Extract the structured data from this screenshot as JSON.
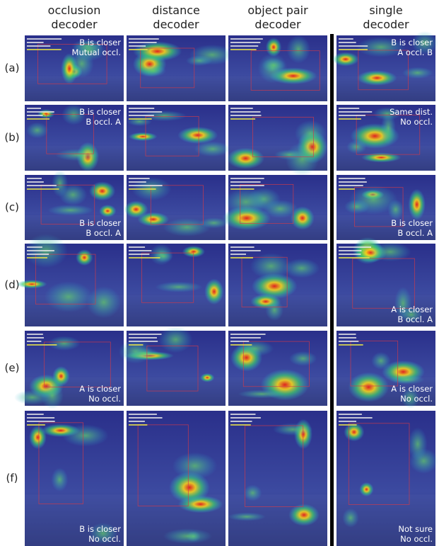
{
  "columns": [
    [
      "occlusion",
      "decoder"
    ],
    [
      "distance",
      "decoder"
    ],
    [
      "object pair",
      "decoder"
    ],
    [
      "single",
      "decoder"
    ]
  ],
  "rows": [
    {
      "label": "(a)",
      "occlusion_decoder": [
        "B is closer",
        "Mutual occl."
      ],
      "single_decoder": [
        "B is closer",
        "A occl. B"
      ]
    },
    {
      "label": "(b)",
      "occlusion_decoder": [
        "B is closer",
        "B occl. A"
      ],
      "single_decoder": [
        "Same dist.",
        "No occl."
      ]
    },
    {
      "label": "(c)",
      "occlusion_decoder": [
        "B is closer",
        "B occl. A"
      ],
      "single_decoder": [
        "B is closer",
        "B occl. A"
      ]
    },
    {
      "label": "(d)",
      "single_decoder": [
        "A is closer",
        "B occl. A"
      ]
    },
    {
      "label": "(e)",
      "occlusion_decoder": [
        "A is closer",
        "No occl."
      ],
      "single_decoder": [
        "A is closer",
        "No occl."
      ]
    },
    {
      "label": "(f)",
      "occlusion_decoder": [
        "B is closer",
        "No occl."
      ],
      "single_decoder": [
        "Not sure",
        "No occl."
      ]
    }
  ]
}
